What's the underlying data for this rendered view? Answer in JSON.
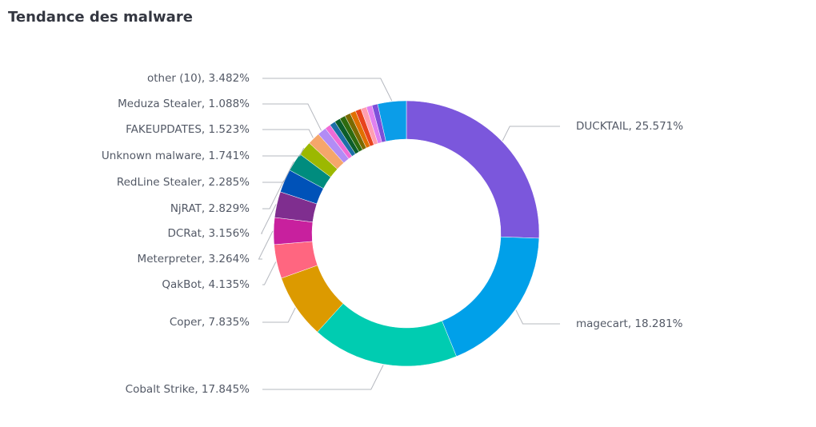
{
  "chart_data": {
    "type": "donut",
    "title": "Tendance des malware",
    "labels": [
      "DUCKTAIL, 25.571%",
      "magecart, 18.281%",
      "Cobalt Strike, 17.845%",
      "Coper, 7.835%",
      "QakBot, 4.135%",
      "Meterpreter, 3.264%",
      "DCRat, 3.156%",
      "NjRAT, 2.829%",
      "RedLine Stealer, 2.285%",
      "Unknown malware, 1.741%",
      "FAKEUPDATES, 1.523%",
      "Meduza Stealer, 1.088%",
      null,
      null,
      null,
      null,
      null,
      null,
      null,
      null,
      null,
      null,
      "other (10), 3.482%"
    ],
    "values": [
      25.571,
      18.281,
      17.845,
      7.835,
      4.135,
      3.264,
      3.156,
      2.829,
      2.285,
      1.741,
      1.523,
      1.088,
      0.697,
      0.697,
      0.697,
      0.697,
      0.697,
      0.697,
      0.697,
      0.697,
      0.697,
      0.697,
      3.482
    ],
    "colors": [
      "#7b57dc",
      "#00a0e9",
      "#00ccb1",
      "#dc9a00",
      "#ff6680",
      "#c8209e",
      "#7f2e8f",
      "#0052b8",
      "#008c7e",
      "#9cb800",
      "#f5a66b",
      "#b28cf5",
      "#f06bd6",
      "#1d6fa8",
      "#0b5d2b",
      "#2e6b0f",
      "#7a6a00",
      "#e07000",
      "#e8431c",
      "#ff9eb0",
      "#e080f0",
      "#7d4fd9",
      "#0b9de8"
    ]
  }
}
